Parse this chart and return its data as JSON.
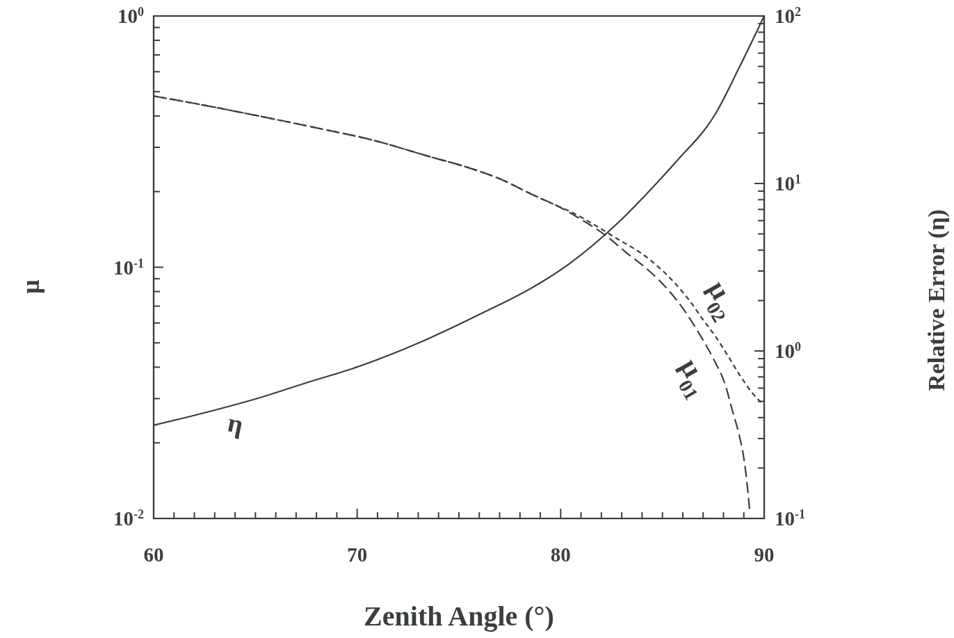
{
  "chart_data": [
    {
      "type": "line",
      "xlabel": "Zenith Angle (°)",
      "ylabel": "μ",
      "xlim": [
        60,
        90
      ],
      "xticks": [
        60,
        {
          "value": 61,
          "label": null
        },
        {
          "value": 62,
          "label": null
        },
        {
          "value": 63,
          "label": null
        },
        {
          "value": 64,
          "label": null
        },
        {
          "value": 65,
          "label": null
        },
        {
          "value": 66,
          "label": null
        },
        {
          "value": 67,
          "label": null
        },
        {
          "value": 68,
          "label": null
        },
        {
          "value": 69,
          "label": null
        },
        70,
        {
          "value": 71,
          "label": null
        },
        {
          "value": 72,
          "label": null
        },
        {
          "value": 73,
          "label": null
        },
        {
          "value": 74,
          "label": null
        },
        {
          "value": 75,
          "label": null
        },
        {
          "value": 76,
          "label": null
        },
        {
          "value": 77,
          "label": null
        },
        {
          "value": 78,
          "label": null
        },
        {
          "value": 79,
          "label": null
        },
        80,
        {
          "value": 81,
          "label": null
        },
        {
          "value": 82,
          "label": null
        },
        {
          "value": 83,
          "label": null
        },
        {
          "value": 84,
          "label": null
        },
        {
          "value": 85,
          "label": null
        },
        {
          "value": 86,
          "label": null
        },
        {
          "value": 87,
          "label": null
        },
        {
          "value": 88,
          "label": null
        },
        {
          "value": 89,
          "label": null
        },
        90
      ],
      "ylim": [
        0.01,
        1
      ],
      "yticks": [
        {
          "value": 0.01,
          "label": "10$^{-2}$"
        },
        {
          "value": 0.02,
          "label": null
        },
        {
          "value": 0.03,
          "label": null
        },
        {
          "value": 0.04,
          "label": null
        },
        {
          "value": 0.05,
          "label": null
        },
        {
          "value": 0.06,
          "label": null
        },
        {
          "value": 0.07,
          "label": null
        },
        {
          "value": 0.08,
          "label": null
        },
        {
          "value": 0.09,
          "label": null
        },
        {
          "value": 0.1,
          "label": "10$^{-1}$"
        },
        {
          "value": 0.2,
          "label": null
        },
        {
          "value": 0.3,
          "label": null
        },
        {
          "value": 0.4,
          "label": null
        },
        {
          "value": 0.5,
          "label": null
        },
        {
          "value": 0.6,
          "label": null
        },
        {
          "value": 0.7,
          "label": null
        },
        {
          "value": 0.8,
          "label": null
        },
        {
          "value": 0.9,
          "label": null
        },
        {
          "value": 1,
          "label": "10$^{0}$"
        }
      ],
      "log": "y",
      "series": [
        {
          "name": "μ$_{01}$",
          "color": "#3a3f3c",
          "line_style": "dashed",
          "x": [
            60,
            62.25,
            64.5,
            67.9,
            70.8,
            73.6,
            75.4,
            77,
            78.7,
            79.8,
            81.0,
            82.2,
            83.19,
            84.33,
            85.24,
            86.15,
            86.95,
            87.52,
            88.09,
            88.43,
            88.77,
            89.0,
            89.17,
            89.28
          ],
          "values": [
            0.48,
            0.445,
            0.41,
            0.36,
            0.32,
            0.275,
            0.25,
            0.225,
            0.193,
            0.176,
            0.155,
            0.134,
            0.115,
            0.097,
            0.082,
            0.066,
            0.052,
            0.043,
            0.034,
            0.027,
            0.0215,
            0.0174,
            0.0135,
            0.0109
          ]
        },
        {
          "name": "μ$_{02}$",
          "color": "#3a3f3c",
          "line_style": "dashed",
          "x": [
            60,
            62.25,
            64.5,
            67.9,
            70.8,
            73.6,
            75.4,
            77,
            78.7,
            79.8,
            80.5,
            82.7,
            84.33,
            85.58,
            86.31,
            87.05,
            87.68,
            88.25,
            88.82,
            89.5,
            89.85
          ],
          "values": [
            0.48,
            0.445,
            0.41,
            0.36,
            0.32,
            0.275,
            0.25,
            0.225,
            0.193,
            0.176,
            0.166,
            0.131,
            0.108,
            0.087,
            0.074,
            0.061,
            0.052,
            0.044,
            0.037,
            0.031,
            0.029
          ]
        }
      ]
    },
    {
      "type": "line",
      "ylabel": "Relative Error (η)",
      "xlim": [
        60,
        90
      ],
      "ylim": [
        0.1,
        100
      ],
      "yticks": [
        {
          "value": 0.1,
          "label": "10$^{-1}$"
        },
        {
          "value": 0.2,
          "label": null
        },
        {
          "value": 0.3,
          "label": null
        },
        {
          "value": 0.4,
          "label": null
        },
        {
          "value": 0.5,
          "label": null
        },
        {
          "value": 0.6,
          "label": null
        },
        {
          "value": 0.7,
          "label": null
        },
        {
          "value": 0.8,
          "label": null
        },
        {
          "value": 0.9,
          "label": null
        },
        {
          "value": 1,
          "label": "10$^{0}$"
        },
        {
          "value": 2,
          "label": null
        },
        {
          "value": 3,
          "label": null
        },
        {
          "value": 4,
          "label": null
        },
        {
          "value": 5,
          "label": null
        },
        {
          "value": 6,
          "label": null
        },
        {
          "value": 7,
          "label": null
        },
        {
          "value": 8,
          "label": null
        },
        {
          "value": 9,
          "label": null
        },
        {
          "value": 10,
          "label": "10$^{1}$"
        },
        {
          "value": 20,
          "label": null
        },
        {
          "value": 30,
          "label": null
        },
        {
          "value": 40,
          "label": null
        },
        {
          "value": 50,
          "label": null
        },
        {
          "value": 60,
          "label": null
        },
        {
          "value": 70,
          "label": null
        },
        {
          "value": 80,
          "label": null
        },
        {
          "value": 90,
          "label": null
        },
        {
          "value": 100,
          "label": "10$^{2}$"
        }
      ],
      "log": "y",
      "tick_labels": "y",
      "series": [
        {
          "name": "η",
          "color": "#3a3f3c",
          "line_style": "solid",
          "x": [
            60,
            62.25,
            65.3,
            67.4,
            70.1,
            73.6,
            76.0,
            79.0,
            80.4,
            82.8,
            84.6,
            85.7,
            87.6,
            88.8,
            90
          ],
          "values": [
            0.36,
            0.42,
            0.53,
            0.64,
            0.81,
            1.2,
            1.65,
            2.55,
            3.3,
            5.8,
            9.7,
            13.6,
            26,
            50,
            100
          ]
        }
      ]
    }
  ]
}
